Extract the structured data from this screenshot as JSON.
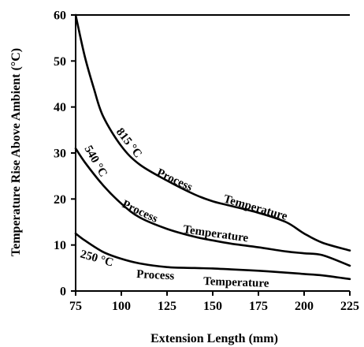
{
  "chart_data": {
    "type": "line",
    "title": "",
    "xlabel": "Extension Length (mm)",
    "ylabel": "Temperature Rise Above Ambient (°C)",
    "xlim": [
      75,
      225
    ],
    "ylim": [
      0,
      60
    ],
    "xticks": [
      75,
      100,
      125,
      150,
      175,
      200,
      225
    ],
    "yticks": [
      0,
      10,
      20,
      30,
      40,
      50,
      60
    ],
    "grid": false,
    "legend": "none",
    "series": [
      {
        "name": "815 °C Process Temperature",
        "name_parts": [
          "815 °C",
          "Process",
          "Temperature"
        ],
        "x": [
          75,
          80,
          85,
          90,
          100,
          110,
          125,
          140,
          150,
          160,
          175,
          190,
          200,
          210,
          225
        ],
        "y": [
          60,
          51,
          44,
          38,
          31.5,
          27.5,
          24,
          21,
          19.5,
          18.5,
          17,
          15,
          12.5,
          10.5,
          8.8
        ]
      },
      {
        "name": "540 °C Process Temperature",
        "name_parts": [
          "540 °C",
          "Process",
          "Temperature"
        ],
        "x": [
          75,
          80,
          90,
          100,
          110,
          125,
          140,
          150,
          160,
          175,
          190,
          200,
          210,
          225
        ],
        "y": [
          31,
          28,
          23,
          19,
          16,
          13.5,
          11.8,
          11,
          10.3,
          9.5,
          8.6,
          8.2,
          7.8,
          5.5
        ]
      },
      {
        "name": "250 °C Process Temperature",
        "name_parts": [
          "250 °C",
          "Process",
          "Temperature"
        ],
        "x": [
          75,
          80,
          90,
          100,
          110,
          125,
          140,
          150,
          160,
          175,
          190,
          200,
          210,
          225
        ],
        "y": [
          12.5,
          11,
          8.5,
          7,
          6,
          5.2,
          5,
          4.9,
          4.7,
          4.4,
          4,
          3.7,
          3.4,
          2.6
        ]
      }
    ]
  }
}
